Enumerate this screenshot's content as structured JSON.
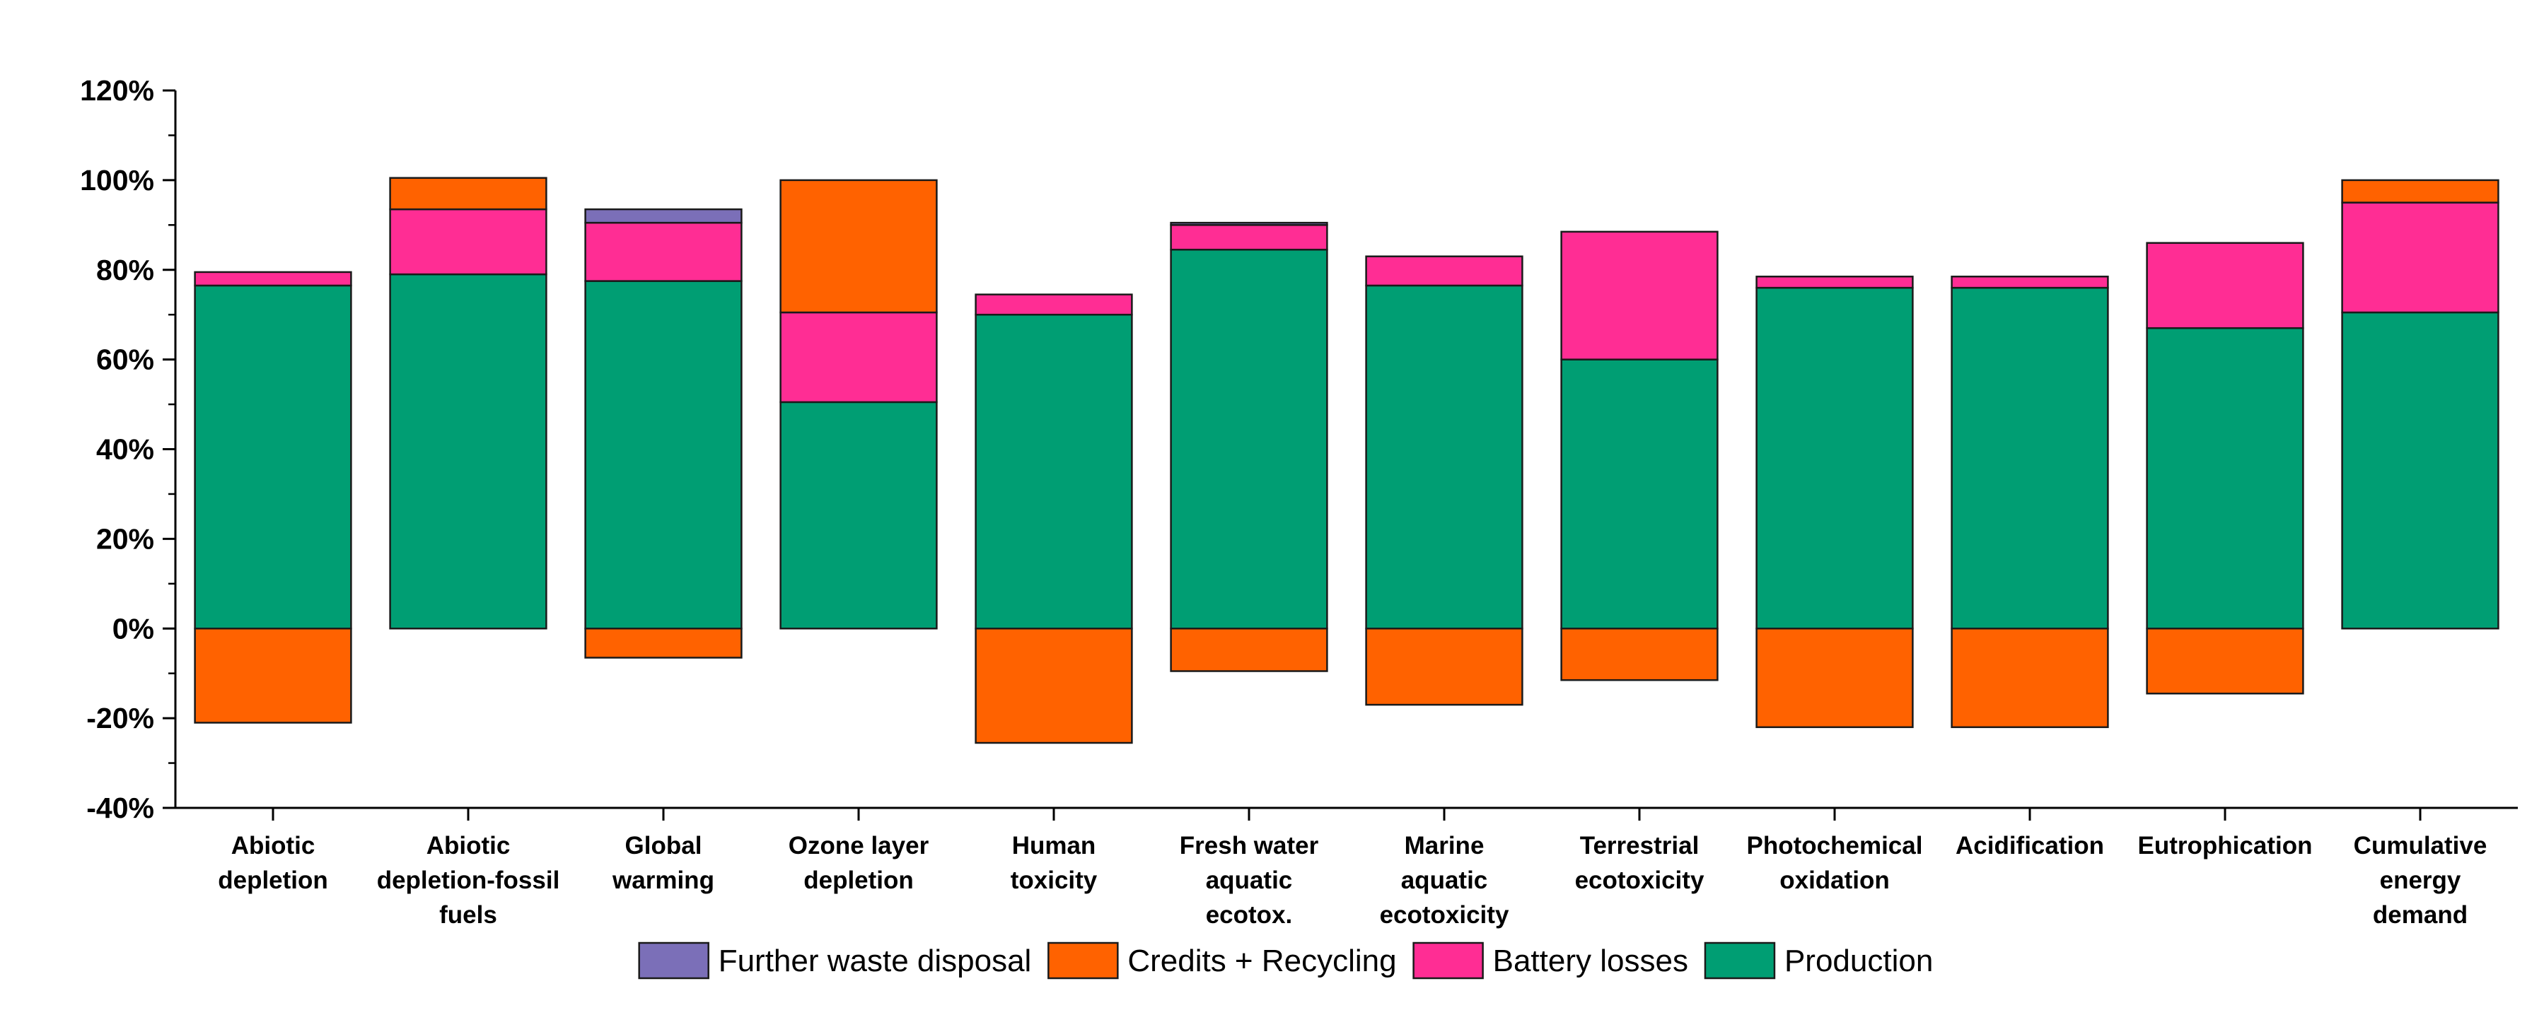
{
  "chart_data": {
    "type": "bar",
    "stacked": true,
    "title": "",
    "xlabel": "",
    "ylabel": "",
    "ylim": [
      -40,
      120
    ],
    "y_ticks": [
      "-40%",
      "-20%",
      "0%",
      "20%",
      "40%",
      "60%",
      "80%",
      "100%",
      "120%"
    ],
    "grid": false,
    "legend_position": "bottom",
    "categories": [
      [
        "Abiotic",
        "depletion"
      ],
      [
        "Abiotic",
        "depletion-fossil",
        "fuels"
      ],
      [
        "Global",
        "warming"
      ],
      [
        "Ozone layer",
        "depletion"
      ],
      [
        "Human",
        "toxicity"
      ],
      [
        "Fresh water",
        "aquatic",
        "ecotox."
      ],
      [
        "Marine",
        "aquatic",
        "ecotoxicity"
      ],
      [
        "Terrestrial",
        "ecotoxicity"
      ],
      [
        "Photochemical",
        "oxidation"
      ],
      [
        "Acidification"
      ],
      [
        "Eutrophication"
      ],
      [
        "Cumulative",
        "energy",
        "demand"
      ]
    ],
    "series": [
      {
        "name": "Production",
        "color": "#009e73",
        "values": [
          76.5,
          79,
          77.5,
          50.5,
          70,
          84.5,
          76.5,
          60,
          76,
          76,
          67,
          70.5
        ]
      },
      {
        "name": "Battery losses",
        "color": "#ff2d94",
        "values": [
          3,
          14.5,
          13,
          20,
          4.5,
          5.5,
          6.5,
          28.5,
          2.5,
          2.5,
          19,
          24.5
        ]
      },
      {
        "name": "Credits + Recycling",
        "color": "#ff6200",
        "values": [
          -21,
          7,
          -6.5,
          29.5,
          -25.5,
          -9.5,
          -17,
          -11.5,
          -22,
          -22,
          -14.5,
          5
        ]
      },
      {
        "name": "Further waste disposal",
        "color": "#7b6fb8",
        "values": [
          0,
          0,
          3,
          0,
          0,
          0.5,
          0,
          0,
          0,
          0,
          0,
          0
        ]
      }
    ],
    "legend_order": [
      "Further waste disposal",
      "Credits + Recycling",
      "Battery losses",
      "Production"
    ]
  }
}
